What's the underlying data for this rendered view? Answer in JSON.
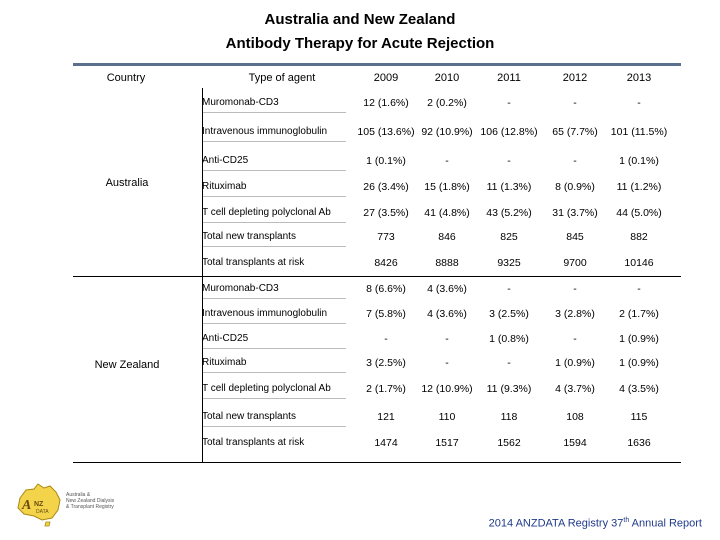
{
  "title_line1": "Australia and New Zealand",
  "title_line2": "Antibody Therapy for Acute Rejection",
  "headers": {
    "country": "Country",
    "agent": "Type of agent",
    "years": [
      "2009",
      "2010",
      "2011",
      "2012",
      "2013"
    ]
  },
  "groups": [
    {
      "country": "Australia",
      "rows": [
        {
          "agent": "Muromonab-CD3",
          "values": [
            "12 (1.6%)",
            "2 (0.2%)",
            "-",
            "-",
            "-"
          ]
        },
        {
          "agent": "Intravenous immunoglobulin",
          "values": [
            "105 (13.6%)",
            "92 (10.9%)",
            "106 (12.8%)",
            "65 (7.7%)",
            "101 (11.5%)"
          ]
        },
        {
          "agent": "Anti-CD25",
          "values": [
            "1 (0.1%)",
            "-",
            "-",
            "-",
            "1 (0.1%)"
          ]
        },
        {
          "agent": "Rituximab",
          "values": [
            "26 (3.4%)",
            "15 (1.8%)",
            "11 (1.3%)",
            "8 (0.9%)",
            "11 (1.2%)"
          ]
        },
        {
          "agent": "T cell depleting polyclonal Ab",
          "values": [
            "27 (3.5%)",
            "41 (4.8%)",
            "43 (5.2%)",
            "31 (3.7%)",
            "44 (5.0%)"
          ]
        },
        {
          "agent": "Total new transplants",
          "values": [
            "773",
            "846",
            "825",
            "845",
            "882"
          ]
        },
        {
          "agent": "Total transplants at risk",
          "values": [
            "8426",
            "8888",
            "9325",
            "9700",
            "10146"
          ]
        }
      ]
    },
    {
      "country": "New Zealand",
      "rows": [
        {
          "agent": "Muromonab-CD3",
          "values": [
            "8 (6.6%)",
            "4 (3.6%)",
            "-",
            "-",
            "-"
          ]
        },
        {
          "agent": "Intravenous immunoglobulin",
          "values": [
            "7 (5.8%)",
            "4 (3.6%)",
            "3 (2.5%)",
            "3 (2.8%)",
            "2 (1.7%)"
          ]
        },
        {
          "agent": "Anti-CD25",
          "values": [
            "-",
            "-",
            "1 (0.8%)",
            "-",
            "1 (0.9%)"
          ]
        },
        {
          "agent": "Rituximab",
          "values": [
            "3 (2.5%)",
            "-",
            "-",
            "1 (0.9%)",
            "1 (0.9%)"
          ]
        },
        {
          "agent": "T cell depleting polyclonal Ab",
          "values": [
            "2 (1.7%)",
            "12 (10.9%)",
            "11 (9.3%)",
            "4 (3.7%)",
            "4 (3.5%)"
          ]
        },
        {
          "agent": "Total new transplants",
          "values": [
            "121",
            "110",
            "118",
            "108",
            "115"
          ]
        },
        {
          "agent": "Total transplants at risk",
          "values": [
            "1474",
            "1517",
            "1562",
            "1594",
            "1636"
          ]
        }
      ]
    }
  ],
  "logo": {
    "icon": "anzdata-logo-icon",
    "mark": "ANZDATA",
    "caption": [
      "Australia &",
      "New Zealand Dialysis",
      "& Transplant Registry"
    ]
  },
  "footer": {
    "prefix": "2014 ANZDATA Registry 37",
    "sup": "th",
    "suffix": " Annual Report"
  }
}
